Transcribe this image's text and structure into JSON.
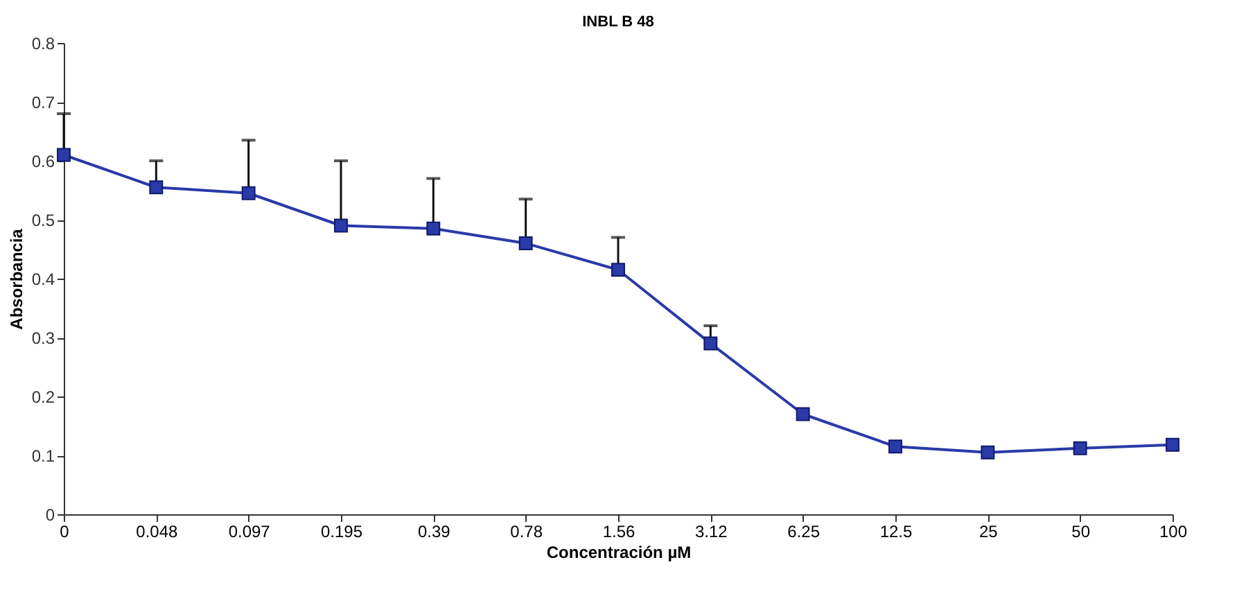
{
  "chart_data": {
    "type": "line",
    "title": "INBL B 48",
    "xlabel": "Concentración µM",
    "ylabel": "Absorbancia",
    "categories": [
      "0",
      "0.048",
      "0.097",
      "0.195",
      "0.39",
      "0.78",
      "1.56",
      "3.12",
      "6.25",
      "12.5",
      "25",
      "50",
      "100"
    ],
    "series": [
      {
        "color": "#2a3aa8",
        "values": [
          0.61,
          0.555,
          0.545,
          0.49,
          0.485,
          0.46,
          0.415,
          0.29,
          0.17,
          0.115,
          0.105,
          0.112,
          0.118
        ],
        "errors": [
          [
            0.61,
            0.68
          ],
          [
            0.555,
            0.6
          ],
          [
            0.545,
            0.635
          ],
          [
            0.49,
            0.6
          ],
          [
            0.485,
            0.57
          ],
          [
            0.46,
            0.535
          ],
          [
            0.415,
            0.47
          ],
          [
            0.29,
            0.32
          ],
          null,
          null,
          null,
          null,
          null
        ]
      }
    ],
    "ylim": [
      0,
      0.8
    ],
    "yticks": [
      0,
      0.1,
      0.2,
      0.3,
      0.4,
      0.5,
      0.6,
      0.7,
      0.8
    ],
    "grid": false,
    "marker": "square",
    "line_style": "solid"
  }
}
